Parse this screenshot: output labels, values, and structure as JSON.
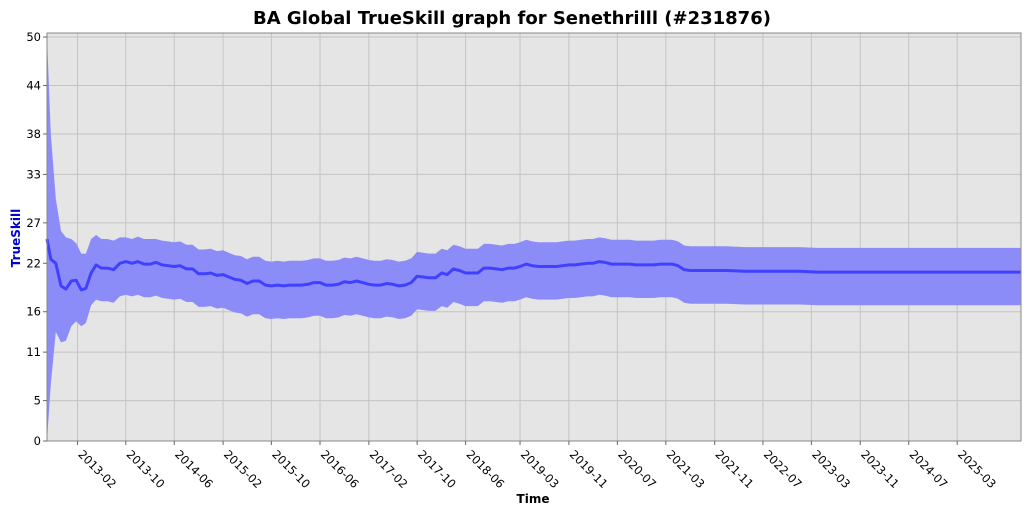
{
  "chart_data": {
    "type": "area",
    "title": "BA Global TrueSkill graph for Senethrilll (#231876)",
    "xlabel": "Time",
    "ylabel": "TrueSkill",
    "ylim": [
      0,
      50.5
    ],
    "yticks": [
      0,
      5,
      11,
      16,
      22,
      27,
      33,
      38,
      44,
      50
    ],
    "xlim": [
      "2012-09-01",
      "2026-01-15"
    ],
    "xticks": [
      "2013-02",
      "2013-10",
      "2014-06",
      "2015-02",
      "2015-10",
      "2016-06",
      "2017-02",
      "2017-10",
      "2018-06",
      "2019-03",
      "2019-11",
      "2020-07",
      "2021-03",
      "2021-11",
      "2022-07",
      "2023-03",
      "2023-11",
      "2024-07",
      "2025-03"
    ],
    "grid": true,
    "legend": "none",
    "colors": {
      "line": "#4040ff",
      "band": "#8c8cf8",
      "plot_bg": "#e5e5e5",
      "grid": "#c4c4c4"
    },
    "series": [
      {
        "x": [
          "2012-09-01",
          "2012-09-20",
          "2012-10-15",
          "2012-11-10",
          "2012-12-05",
          "2013-01-01",
          "2013-01-25",
          "2013-02-20",
          "2013-03-15",
          "2013-04-10",
          "2013-05-05",
          "2013-06-01",
          "2013-07-01",
          "2013-08-01",
          "2013-09-01",
          "2013-10-01",
          "2013-11-01",
          "2013-12-01",
          "2014-01-01",
          "2014-02-01",
          "2014-03-01",
          "2014-04-01",
          "2014-05-01",
          "2014-06-01",
          "2014-07-01",
          "2014-08-01",
          "2014-09-01",
          "2014-10-01",
          "2014-11-01",
          "2014-12-01",
          "2015-01-01",
          "2015-02-01",
          "2015-03-01",
          "2015-04-01",
          "2015-05-01",
          "2015-06-01",
          "2015-07-01",
          "2015-08-01",
          "2015-09-01",
          "2015-10-01",
          "2015-11-01",
          "2015-12-01",
          "2016-01-01",
          "2016-02-01",
          "2016-03-01",
          "2016-04-01",
          "2016-05-01",
          "2016-06-01",
          "2016-07-01",
          "2016-08-01",
          "2016-09-01",
          "2016-10-01",
          "2016-11-01",
          "2016-12-01",
          "2017-01-01",
          "2017-02-01",
          "2017-03-01",
          "2017-04-01",
          "2017-05-01",
          "2017-06-01",
          "2017-07-01",
          "2017-08-01",
          "2017-09-01",
          "2017-10-01",
          "2017-11-01",
          "2017-12-01",
          "2018-01-01",
          "2018-02-01",
          "2018-03-01",
          "2018-04-01",
          "2018-05-01",
          "2018-06-01",
          "2018-07-01",
          "2018-08-01",
          "2018-09-01",
          "2018-10-01",
          "2018-11-01",
          "2018-12-01",
          "2019-01-01",
          "2019-02-01",
          "2019-03-01",
          "2019-04-01",
          "2019-05-01",
          "2019-06-01",
          "2019-07-01",
          "2019-08-01",
          "2019-09-01",
          "2019-10-01",
          "2019-11-01",
          "2019-12-01",
          "2020-01-01",
          "2020-02-01",
          "2020-03-01",
          "2020-04-01",
          "2020-05-01",
          "2020-06-01",
          "2020-07-01",
          "2020-08-01",
          "2020-09-01",
          "2020-10-01",
          "2020-11-01",
          "2020-12-01",
          "2021-01-01",
          "2021-02-01",
          "2021-03-01",
          "2021-04-01",
          "2021-05-01",
          "2021-06-01",
          "2021-07-01",
          "2021-08-01",
          "2021-10-01",
          "2022-01-01",
          "2022-04-01",
          "2022-07-01",
          "2022-10-01",
          "2023-01-01",
          "2023-04-01",
          "2023-07-01",
          "2023-10-01",
          "2024-01-01",
          "2024-04-01",
          "2024-07-01",
          "2024-10-01",
          "2025-01-01",
          "2025-04-01",
          "2025-07-01",
          "2025-10-01",
          "2026-01-15"
        ],
        "mu": [
          25.0,
          22.5,
          22.0,
          19.2,
          18.8,
          19.8,
          19.9,
          18.7,
          18.9,
          20.8,
          21.8,
          21.4,
          21.4,
          21.2,
          22.0,
          22.2,
          22.0,
          22.2,
          21.9,
          21.9,
          22.1,
          21.8,
          21.7,
          21.6,
          21.7,
          21.3,
          21.3,
          20.7,
          20.7,
          20.8,
          20.5,
          20.6,
          20.3,
          20.0,
          19.9,
          19.5,
          19.8,
          19.8,
          19.3,
          19.2,
          19.3,
          19.2,
          19.3,
          19.3,
          19.3,
          19.4,
          19.6,
          19.6,
          19.3,
          19.3,
          19.4,
          19.7,
          19.6,
          19.8,
          19.6,
          19.4,
          19.3,
          19.3,
          19.5,
          19.4,
          19.2,
          19.3,
          19.6,
          20.4,
          20.3,
          20.2,
          20.2,
          20.8,
          20.6,
          21.3,
          21.1,
          20.8,
          20.8,
          20.8,
          21.4,
          21.4,
          21.3,
          21.2,
          21.4,
          21.4,
          21.6,
          21.9,
          21.7,
          21.6,
          21.6,
          21.6,
          21.6,
          21.7,
          21.8,
          21.8,
          21.9,
          22.0,
          22.0,
          22.2,
          22.1,
          21.9,
          21.9,
          21.9,
          21.9,
          21.8,
          21.8,
          21.8,
          21.8,
          21.9,
          21.9,
          21.9,
          21.7,
          21.2,
          21.1,
          21.1,
          21.1,
          21.1,
          21.0,
          21.0,
          21.0,
          21.0,
          20.9,
          20.9,
          20.9,
          20.9,
          20.9,
          20.9,
          20.9,
          20.9,
          20.9,
          20.9,
          20.9,
          20.9
        ],
        "upper": [
          50.0,
          38.0,
          30.0,
          26.0,
          25.2,
          25.0,
          24.5,
          23.2,
          23.2,
          25.0,
          25.5,
          25.0,
          25.0,
          24.8,
          25.2,
          25.2,
          25.0,
          25.3,
          25.0,
          25.0,
          25.0,
          24.8,
          24.7,
          24.6,
          24.7,
          24.3,
          24.3,
          23.7,
          23.7,
          23.8,
          23.5,
          23.6,
          23.3,
          23.0,
          22.9,
          22.5,
          22.8,
          22.8,
          22.3,
          22.2,
          22.3,
          22.2,
          22.3,
          22.3,
          22.3,
          22.4,
          22.6,
          22.6,
          22.3,
          22.3,
          22.4,
          22.7,
          22.6,
          22.8,
          22.6,
          22.4,
          22.3,
          22.3,
          22.5,
          22.4,
          22.2,
          22.3,
          22.6,
          23.4,
          23.3,
          23.2,
          23.2,
          23.8,
          23.6,
          24.3,
          24.1,
          23.8,
          23.8,
          23.8,
          24.4,
          24.4,
          24.3,
          24.2,
          24.4,
          24.4,
          24.6,
          24.9,
          24.7,
          24.6,
          24.6,
          24.6,
          24.6,
          24.7,
          24.8,
          24.8,
          24.9,
          25.0,
          25.0,
          25.2,
          25.1,
          24.9,
          24.9,
          24.9,
          24.9,
          24.8,
          24.8,
          24.8,
          24.8,
          24.9,
          24.9,
          24.9,
          24.7,
          24.2,
          24.1,
          24.1,
          24.1,
          24.1,
          24.0,
          24.0,
          24.0,
          24.0,
          23.9,
          23.9,
          23.9,
          23.9,
          23.9,
          23.9,
          23.9,
          23.9,
          23.9,
          23.9,
          23.9,
          23.9
        ],
        "lower": [
          0.0,
          7.0,
          13.5,
          12.2,
          12.4,
          14.2,
          14.8,
          14.2,
          14.6,
          16.8,
          17.5,
          17.3,
          17.3,
          17.1,
          17.9,
          18.1,
          17.9,
          18.1,
          17.8,
          17.8,
          18.0,
          17.7,
          17.6,
          17.5,
          17.6,
          17.2,
          17.2,
          16.6,
          16.6,
          16.7,
          16.4,
          16.5,
          16.2,
          15.9,
          15.8,
          15.4,
          15.7,
          15.7,
          15.2,
          15.1,
          15.2,
          15.1,
          15.2,
          15.2,
          15.2,
          15.3,
          15.5,
          15.5,
          15.2,
          15.2,
          15.3,
          15.6,
          15.5,
          15.7,
          15.5,
          15.3,
          15.2,
          15.2,
          15.4,
          15.3,
          15.1,
          15.2,
          15.5,
          16.3,
          16.2,
          16.1,
          16.1,
          16.7,
          16.5,
          17.2,
          17.0,
          16.7,
          16.7,
          16.7,
          17.3,
          17.3,
          17.2,
          17.1,
          17.3,
          17.3,
          17.5,
          17.8,
          17.6,
          17.5,
          17.5,
          17.5,
          17.5,
          17.6,
          17.7,
          17.7,
          17.8,
          17.9,
          17.9,
          18.1,
          18.0,
          17.8,
          17.8,
          17.8,
          17.8,
          17.7,
          17.7,
          17.7,
          17.7,
          17.8,
          17.8,
          17.8,
          17.6,
          17.1,
          17.0,
          17.0,
          17.0,
          17.0,
          16.9,
          16.9,
          16.9,
          16.9,
          16.8,
          16.8,
          16.8,
          16.8,
          16.8,
          16.8,
          16.8,
          16.8,
          16.8,
          16.8,
          16.8,
          16.8
        ]
      }
    ]
  }
}
